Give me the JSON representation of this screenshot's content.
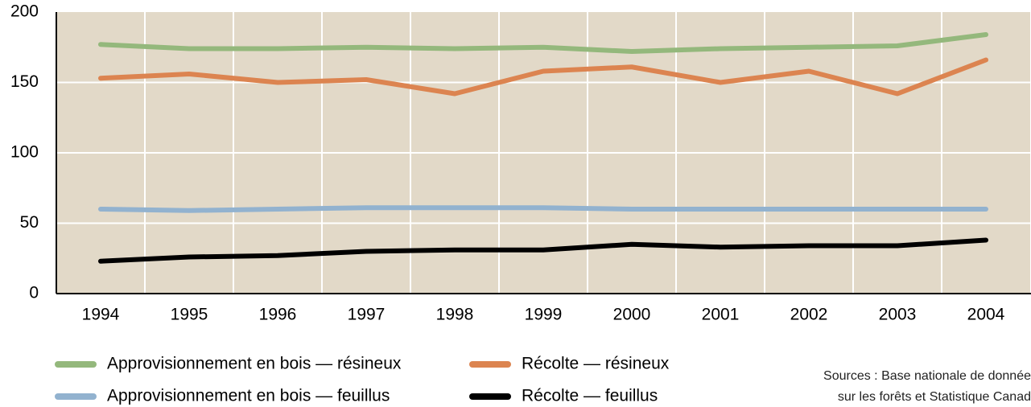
{
  "chart_data": {
    "type": "line",
    "categories": [
      "1994",
      "1995",
      "1996",
      "1997",
      "1998",
      "1999",
      "2000",
      "2001",
      "2002",
      "2003",
      "2004"
    ],
    "series": [
      {
        "name": "Approvisionnement en bois — résineux",
        "color": "#94b87c",
        "values": [
          177,
          174,
          174,
          175,
          174,
          175,
          172,
          174,
          175,
          176,
          184
        ]
      },
      {
        "name": "Récolte — résineux",
        "color": "#dc8450",
        "values": [
          153,
          156,
          150,
          152,
          142,
          158,
          161,
          150,
          158,
          142,
          166
        ]
      },
      {
        "name": "Approvisionnement en bois — feuillus",
        "color": "#92b2cf",
        "values": [
          60,
          59,
          60,
          61,
          61,
          61,
          60,
          60,
          60,
          60,
          60
        ]
      },
      {
        "name": "Récolte — feuillus",
        "color": "#000000",
        "values": [
          23,
          26,
          27,
          30,
          31,
          31,
          35,
          33,
          34,
          34,
          38
        ]
      }
    ],
    "ylim": [
      0,
      200
    ],
    "yticks": [
      0,
      50,
      100,
      150,
      200
    ],
    "grid": true,
    "sources": [
      "Sources : Base nationale de donnée",
      "sur les forêts et Statistique Canad"
    ]
  }
}
